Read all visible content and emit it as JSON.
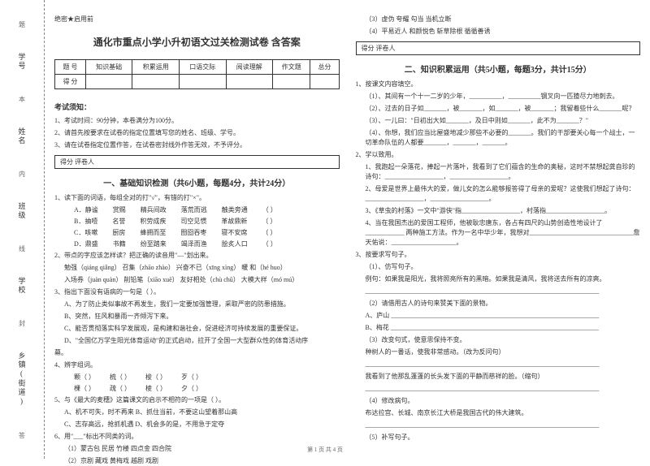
{
  "leftMargin": {
    "labels": [
      "学号",
      "姓名",
      "班级",
      "学校",
      "乡镇(街道)"
    ],
    "cutMarks": [
      "题",
      "本",
      "内",
      "线",
      "封",
      "答"
    ]
  },
  "header": {
    "secret": "绝密★启用前",
    "title": "通化市重点小学小升初语文过关检测试卷 含答案"
  },
  "scoreTable": {
    "row1": [
      "题 号",
      "知识基础",
      "积累运用",
      "口语交际",
      "阅读理解",
      "作文题",
      "总分"
    ],
    "row2": [
      "得 分",
      "",
      "",
      "",
      "",
      "",
      ""
    ]
  },
  "examNotice": {
    "header": "考试须知：",
    "items": [
      "1、考试时间：90分钟，本卷满分为100分。",
      "2、请首先按要求在试卷的指定位置填写您的姓名、班级、学号。",
      "3、请在试卷指定位置作答，在试卷密封线外作答无效，不予评分。"
    ]
  },
  "section1": {
    "scoreLabel": "得分  评卷人",
    "title": "一、基础知识检测（共6小题，每题4分，共计24分）",
    "q1": {
      "text": "1、读下面的词语，每组全对的打\"√\"，有错的打\"×\"。",
      "opts": [
        [
          "A．静谧",
          "赏赐",
          "精兵间政",
          "落荒而逃",
          "触类旁通",
          "（    ）"
        ],
        [
          "B．抽噎",
          "名誉",
          "积劳成疾",
          "司空见惯",
          "革故鼎新",
          "（    ）"
        ],
        [
          "C．咳嗽",
          "厨房",
          "蜂拥而至",
          "囫囵吞枣",
          "寝不安席",
          "（    ）"
        ],
        [
          "D．鼎盛",
          "书籍",
          "纷至踏来",
          "竭泽而渔",
          "脍炙人口",
          "（    ）"
        ]
      ]
    },
    "q2": {
      "text": "2、带点的字应该怎样读？把正确的读音用\"—\"划出来。",
      "lines": [
        "勉强（qiáng qiǎng）   召集（zhāo zhào）   兴奋不已（xīng xìng）   暖 和（hé huo）",
        "入场券（juàn quàn）   削铅笔（xiāo xuē）   友好相处（chù chǔ）   大模大样（mó mú）"
      ]
    },
    "q3": {
      "text": "3、指出下面没有语病的一句是（    ）。",
      "opts": [
        "A、为了防止类似事故不再发生，我们一定要加强管理，采取严密的防患措施。",
        "B、突然，狂风和暴雨一齐倾泻下来。",
        "C、能否贯彻落实科学发展观，是构建和谐社会，促进经济可持续发展的重要保证。",
        "D、\"全国亿万学生阳光体育运动\"的正式启动，拉开了全国一大型群众性的体育活动序"
      ],
      "tail": "幕。"
    },
    "q4": {
      "text": "4、辨字组词。",
      "rows": [
        [
          "颗（        ）",
          "梳（        ）",
          "梭（        ）",
          "歹（        ）"
        ],
        [
          "棵（        ）",
          "疏（        ）",
          "棱（        ）",
          "夕（        ）"
        ]
      ]
    },
    "q5": {
      "text": "5、与《最大的麦穗》这篇课文的启示不相符的一项是（   ）。",
      "opts": [
        "A、机不可失，时不再来    B、抓住当前，不要这山望着那山高",
        "C、志存高远，抢抓机遇    D、机会多的是，不用急于定夺"
      ]
    },
    "q6": {
      "text": "6、用\"___\"标出不同类的词。",
      "rows": [
        "（1）蒙古包     民居      竹楼      四点金      四合院",
        "（2）京剧     藏戏      黄梅戏     越剧        戏剧"
      ]
    }
  },
  "col2Top": {
    "lines": [
      "（3）虚伪     夸耀       勾当      当机立断",
      "（4）平易近人  和颜悦色    斩草除根   循循善诱"
    ]
  },
  "section2": {
    "scoreLabel": "得分  评卷人",
    "title": "二、知识积累运用（共5小题，每题3分，共计15分）",
    "q1": {
      "text": "1、按课文内容填空。",
      "items": [
        "（1）、其间有一个十一二岁的少年，__________，__________钢叉向一匹猹尽力地刺去。",
        "（2）、过去的日子如_______，被_______，如_______，被_______；我留着些什么_______呢？",
        "（3）、一儿曰：\"日初出大如_______，及日中则如_______，此不为_______？\"",
        "（4）、你想，我们应当比屋盛地减少那些不必要的_______。我们的干部要关心每一个战士，一切革命队伍的人都要_______，_______，_______。"
      ]
    },
    "q2": {
      "text": "2、学以致用。",
      "items": [
        "1、我跑起一朵落花，捧起一片落叶，我看到了它们蕴含的生命的奥秘，这时不禁想起龚自珍的诗句：__________________，__________________。",
        "2、母爱是世界上最伟大的爱，做儿女的怎么能够报答得了母亲的爱呢？这使我们想起了诗句：__________________，__________________。",
        "3、《草虫的村落》一文中\"游侠\"指__________________，村落指__________________。",
        "4、当在我国杰出的爱国工程师，他被耿忠唐东，各占有四尺的山势创造性地设计了____________ 两种施工方法。作为一名中华少年，我想对________________________________詹天佑说：____________________。"
      ]
    },
    "q3": {
      "text": "3、按要求写句子。",
      "items": [
        "（1）、仿写句子。",
        "例句：如果我是阳光，我将照亮所有的黑暗。如果我是清风，我将送去所有的凉爽。",
        "________________________________________________________________________",
        "（2）请借用古人的诗句来赞美下面的景物。",
        "A、庐山 ________________________________________________________________",
        "B、梅花 ________________________________________________________________",
        "（3）改变句式，使意思保持不变。",
        "种树人的一番话，使我非常感动。（改为反问句）",
        "________________________________________________________________________",
        "我看到了他那乱蓬蓬的长头发下面的平静而慈祥的脸。（缩句）",
        "________________________________________________________________________",
        "（4）修改病句。",
        "布达拉宫、长城、南京长江大桥是我国古代的伟大建筑。",
        "________________________________________________________________________",
        "（5）补写句子。"
      ]
    }
  },
  "footer": "第 1 页 共 4 页"
}
